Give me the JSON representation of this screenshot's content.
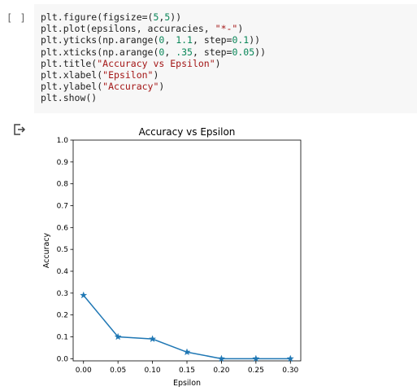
{
  "cell": {
    "run_indicator": "[ ]",
    "code_lines": [
      [
        {
          "t": "plt.figure(figsize=("
        },
        {
          "t": "5",
          "c": "n"
        },
        {
          "t": ","
        },
        {
          "t": "5",
          "c": "n"
        },
        {
          "t": "))"
        }
      ],
      [
        {
          "t": "plt.plot(epsilons, accuracies, "
        },
        {
          "t": "\"*-\"",
          "c": "s"
        },
        {
          "t": ")"
        }
      ],
      [
        {
          "t": "plt.yticks(np.arange("
        },
        {
          "t": "0",
          "c": "n"
        },
        {
          "t": ", "
        },
        {
          "t": "1.1",
          "c": "n"
        },
        {
          "t": ", step="
        },
        {
          "t": "0.1",
          "c": "n"
        },
        {
          "t": "))"
        }
      ],
      [
        {
          "t": "plt.xticks(np.arange("
        },
        {
          "t": "0",
          "c": "n"
        },
        {
          "t": ", "
        },
        {
          "t": ".35",
          "c": "n"
        },
        {
          "t": ", step="
        },
        {
          "t": "0.05",
          "c": "n"
        },
        {
          "t": "))"
        }
      ],
      [
        {
          "t": "plt.title("
        },
        {
          "t": "\"Accuracy vs Epsilon\"",
          "c": "s"
        },
        {
          "t": ")"
        }
      ],
      [
        {
          "t": "plt.xlabel("
        },
        {
          "t": "\"Epsilon\"",
          "c": "s"
        },
        {
          "t": ")"
        }
      ],
      [
        {
          "t": "plt.ylabel("
        },
        {
          "t": "\"Accuracy\"",
          "c": "s"
        },
        {
          "t": ")"
        }
      ],
      [
        {
          "t": "plt.show()"
        }
      ]
    ]
  },
  "output": {
    "icon": "output-redirect-icon"
  },
  "chart_data": {
    "type": "line",
    "title": "Accuracy vs Epsilon",
    "xlabel": "Epsilon",
    "ylabel": "Accuracy",
    "x": [
      0.0,
      0.05,
      0.1,
      0.15,
      0.2,
      0.25,
      0.3
    ],
    "series": [
      {
        "values": [
          0.29,
          0.1,
          0.09,
          0.03,
          0.0,
          0.0,
          0.0
        ],
        "marker": "*",
        "color": "#1f77b4"
      }
    ],
    "xticks": [
      "0.00",
      "0.05",
      "0.10",
      "0.15",
      "0.20",
      "0.25",
      "0.30"
    ],
    "yticks": [
      "0.0",
      "0.1",
      "0.2",
      "0.3",
      "0.4",
      "0.5",
      "0.6",
      "0.7",
      "0.8",
      "0.9",
      "1.0"
    ],
    "xlim": [
      -0.015,
      0.315
    ],
    "ylim": [
      -0.01,
      1.0
    ],
    "grid": false,
    "legend": false
  }
}
